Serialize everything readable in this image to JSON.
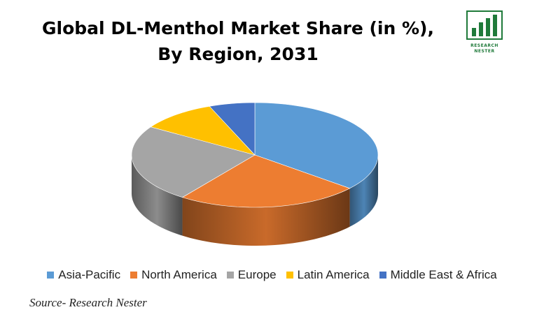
{
  "logo": {
    "line1": "RESEARCH",
    "line2": "NESTER"
  },
  "chart_data": {
    "type": "pie",
    "title": "Global DL-Menthol Market Share (in %), By Region, 2031",
    "categories": [
      "Asia-Pacific",
      "North America",
      "Europe",
      "Latin America",
      "Middle East & Africa"
    ],
    "values": [
      36,
      24,
      24,
      10,
      6
    ],
    "colors": [
      "#5b9bd5",
      "#ed7d31",
      "#a5a5a5",
      "#ffc000",
      "#4472c4"
    ],
    "legend_position": "bottom",
    "style": "3d"
  },
  "source": "Source- Research Nester"
}
